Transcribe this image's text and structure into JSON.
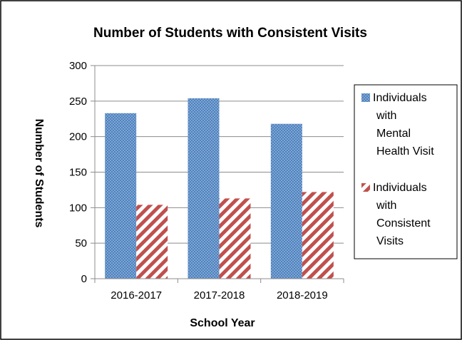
{
  "chart_data": {
    "type": "bar",
    "title": "Number of Students with Consistent Visits",
    "xlabel": "School Year",
    "ylabel": "Number of Students",
    "categories": [
      "2016-2017",
      "2017-2018",
      "2018-2019"
    ],
    "ylim": [
      0,
      300
    ],
    "yticks": [
      0,
      50,
      100,
      150,
      200,
      250,
      300
    ],
    "grid": true,
    "legend_position": "right",
    "series": [
      {
        "name": "Individuals with Mental Health Visit",
        "legend_lines": [
          "Individuals",
          "with",
          "Mental",
          "Health Visit"
        ],
        "values": [
          233,
          254,
          218
        ],
        "color": "#4f81bd",
        "pattern": "dots"
      },
      {
        "name": "Individuals with Consistent Visits",
        "legend_lines": [
          "Individuals",
          "with",
          "Consistent",
          "Visits"
        ],
        "values": [
          104,
          113,
          122
        ],
        "color": "#c0504d",
        "pattern": "diagonal-stripes"
      }
    ]
  }
}
